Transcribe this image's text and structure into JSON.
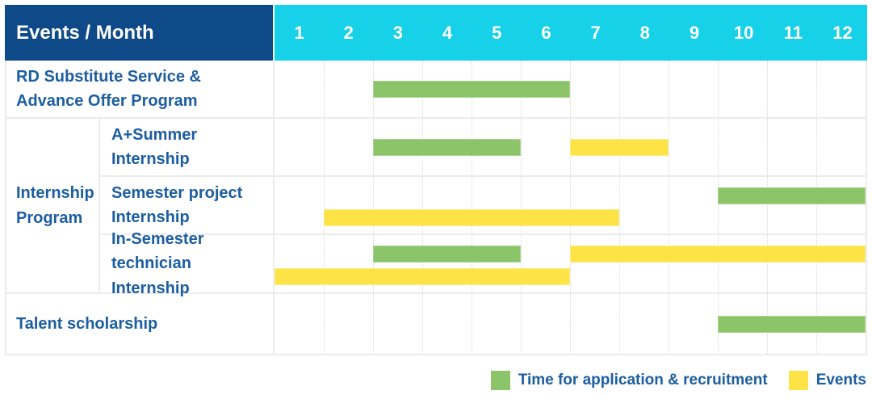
{
  "header": {
    "corner": "Events / Month",
    "months": [
      "1",
      "2",
      "3",
      "4",
      "5",
      "6",
      "7",
      "8",
      "9",
      "10",
      "11",
      "12"
    ]
  },
  "rows": [
    {
      "label": "RD Substitute Service & Advance Offer Program",
      "bars": [
        {
          "color": "green",
          "start": 3,
          "end": 6,
          "lane": "center"
        }
      ]
    },
    {
      "group": "Internship Program",
      "label": "A+Summer Internship",
      "bars": [
        {
          "color": "green",
          "start": 3,
          "end": 5,
          "lane": "center"
        },
        {
          "color": "yellow",
          "start": 7,
          "end": 8,
          "lane": "center"
        }
      ]
    },
    {
      "group": "Internship Program",
      "label": "Semester project Internship",
      "bars": [
        {
          "color": "green",
          "start": 10,
          "end": 12,
          "lane": "top"
        },
        {
          "color": "yellow",
          "start": 2,
          "end": 7,
          "lane": "bottom"
        }
      ]
    },
    {
      "group": "Internship Program",
      "label": "In-Semester technician Internship",
      "bars": [
        {
          "color": "green",
          "start": 3,
          "end": 5,
          "lane": "top"
        },
        {
          "color": "yellow",
          "start": 7,
          "end": 12,
          "lane": "top"
        },
        {
          "color": "yellow",
          "start": 1,
          "end": 6,
          "lane": "bottom"
        }
      ]
    },
    {
      "label": "Talent scholarship",
      "bars": [
        {
          "color": "green",
          "start": 10,
          "end": 12,
          "lane": "center"
        }
      ]
    }
  ],
  "legend": {
    "application": "Time for application & recruitment",
    "events": "Events"
  },
  "colors": {
    "navy": "#0d4a87",
    "cyan": "#17d1e9",
    "label_blue": "#1c5ea1",
    "green": "#8cc569",
    "green_edge": "#a8d38f",
    "yellow": "#fde345",
    "yellow_edge": "#fdec82",
    "grid": "#ececec",
    "grid_dotted": "#d8d8d8"
  },
  "chart_data": {
    "type": "bar",
    "variant": "gantt",
    "title": "Events / Month",
    "x_categories": [
      "1",
      "2",
      "3",
      "4",
      "5",
      "6",
      "7",
      "8",
      "9",
      "10",
      "11",
      "12"
    ],
    "x_range": [
      1,
      12
    ],
    "grid": true,
    "legend_position": "bottom-right",
    "legend": [
      {
        "name": "Time for application & recruitment",
        "color": "#8cc569"
      },
      {
        "name": "Events",
        "color": "#fde345"
      }
    ],
    "tasks": [
      {
        "event": "RD Substitute Service & Advance Offer Program",
        "application_recruitment_months": [
          [
            3,
            6
          ]
        ],
        "event_months": []
      },
      {
        "event": "Internship Program - A+Summer Internship",
        "application_recruitment_months": [
          [
            3,
            5
          ]
        ],
        "event_months": [
          [
            7,
            8
          ]
        ]
      },
      {
        "event": "Internship Program - Semester project Internship",
        "application_recruitment_months": [
          [
            10,
            12
          ]
        ],
        "event_months": [
          [
            2,
            7
          ]
        ]
      },
      {
        "event": "Internship Program - In-Semester technician Internship",
        "application_recruitment_months": [
          [
            3,
            5
          ]
        ],
        "event_months": [
          [
            1,
            6
          ],
          [
            7,
            12
          ]
        ]
      },
      {
        "event": "Talent scholarship",
        "application_recruitment_months": [
          [
            10,
            12
          ]
        ],
        "event_months": []
      }
    ]
  }
}
